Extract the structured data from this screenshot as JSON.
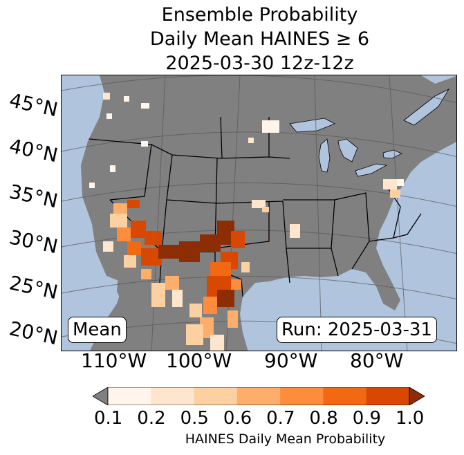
{
  "title": {
    "line1": "Ensemble Probability",
    "line2": "Daily Mean HAINES ≥ 6",
    "line3": "2025-03-30 12z-12z"
  },
  "map": {
    "ocean_color": "#b0c4de",
    "land_color": "#808080",
    "border_color": "#000000",
    "lat_labels": [
      "45°N",
      "40°N",
      "35°N",
      "30°N",
      "25°N",
      "20°N"
    ],
    "lon_labels": [
      "110°W",
      "100°W",
      "90°W",
      "80°W"
    ]
  },
  "overlay": {
    "left_label": "Mean",
    "right_label": "Run: 2025-03-31"
  },
  "colorbar": {
    "label": "HAINES Daily Mean Probability",
    "ticks": [
      "0.1",
      "0.2",
      "0.5",
      "0.6",
      "0.7",
      "0.8",
      "0.9",
      "1.0"
    ],
    "under_color": "#808080",
    "colors": [
      "#fff5eb",
      "#fee6ce",
      "#fdd0a2",
      "#fdae6b",
      "#fd8d3c",
      "#f16913",
      "#d94801",
      "#8c2d04"
    ]
  }
}
